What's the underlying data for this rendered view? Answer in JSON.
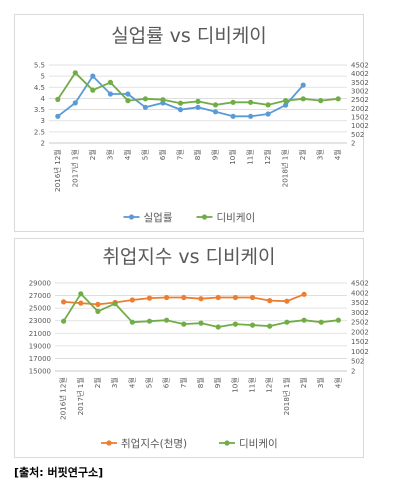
{
  "source_note": "[출처: 버핏연구소]",
  "colors": {
    "unemployment": "#5b9bd5",
    "employment_index": "#ed7d31",
    "dbk": "#70ad47",
    "grid": "#d9d9d9",
    "text": "#595959"
  },
  "chart_data": [
    {
      "type": "line",
      "title": "실업률 vs 디비케이",
      "categories": [
        "2016년 12월",
        "2017년 1월",
        "2월",
        "3월",
        "4월",
        "5월",
        "6월",
        "7월",
        "8월",
        "9월",
        "10월",
        "11월",
        "12월",
        "2018년 1월",
        "2월",
        "3월",
        "4월"
      ],
      "left_axis": {
        "ylim": [
          2,
          5.5
        ],
        "ticks": [
          "2",
          "2.5",
          "3",
          "3.5",
          "4",
          "4.5",
          "5",
          "5.5"
        ]
      },
      "right_axis": {
        "ylim": [
          2,
          4502
        ],
        "ticks": [
          "2",
          "502",
          "1002",
          "1502",
          "2002",
          "2502",
          "3002",
          "3502",
          "4002",
          "4502"
        ]
      },
      "series": [
        {
          "name": "실업률",
          "axis": "left",
          "color": "#5b9bd5",
          "values": [
            3.2,
            3.8,
            5.0,
            4.2,
            4.2,
            3.6,
            3.8,
            3.5,
            3.6,
            3.4,
            3.2,
            3.2,
            3.3,
            3.7,
            4.6,
            null,
            null
          ]
        },
        {
          "name": "디비케이",
          "axis": "right",
          "color": "#70ad47",
          "values": [
            2520,
            4050,
            3050,
            3500,
            2450,
            2550,
            2500,
            2300,
            2400,
            2200,
            2350,
            2350,
            2200,
            2450,
            2550,
            2450,
            2550
          ]
        }
      ],
      "legend": "bottom",
      "grid": true
    },
    {
      "type": "line",
      "title": "취업지수 vs 디비케이",
      "categories": [
        "2016년 12월",
        "2017년 1월",
        "2월",
        "3월",
        "4월",
        "5월",
        "6월",
        "7월",
        "8월",
        "9월",
        "10월",
        "11월",
        "12월",
        "2018년 1월",
        "2월",
        "3월",
        "4월"
      ],
      "left_axis": {
        "ylim": [
          15000,
          29000
        ],
        "ticks": [
          "15000",
          "17000",
          "19000",
          "21000",
          "23000",
          "25000",
          "27000",
          "29000"
        ]
      },
      "right_axis": {
        "ylim": [
          2,
          4502
        ],
        "ticks": [
          "2",
          "502",
          "1002",
          "1502",
          "2002",
          "2502",
          "3002",
          "3502",
          "4002",
          "4502"
        ]
      },
      "series": [
        {
          "name": "취업지수(천명)",
          "axis": "left",
          "color": "#ed7d31",
          "values": [
            26000,
            25800,
            25600,
            25900,
            26300,
            26600,
            26700,
            26700,
            26500,
            26700,
            26700,
            26700,
            26200,
            26100,
            27200,
            null,
            null
          ]
        },
        {
          "name": "디비케이",
          "axis": "right",
          "color": "#70ad47",
          "values": [
            2550,
            3950,
            3050,
            3450,
            2500,
            2550,
            2600,
            2400,
            2450,
            2250,
            2400,
            2350,
            2300,
            2500,
            2600,
            2500,
            2600
          ]
        }
      ],
      "legend": "bottom",
      "grid": true
    }
  ]
}
